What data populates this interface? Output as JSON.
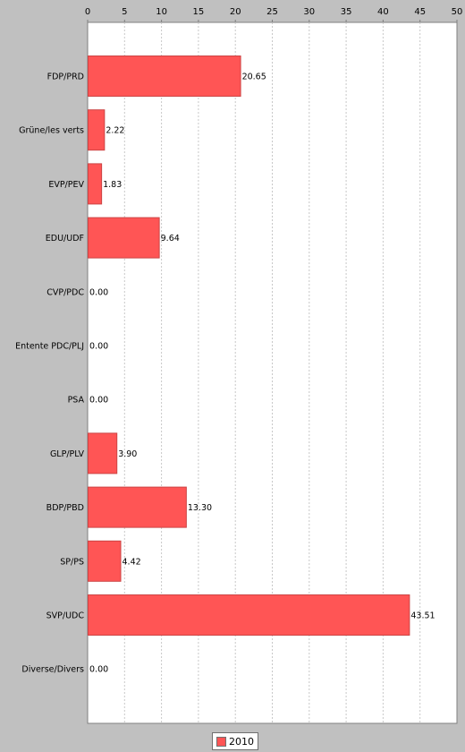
{
  "chart_data": {
    "type": "bar",
    "orientation": "horizontal",
    "categories": [
      "FDP/PRD",
      "Grüne/les verts",
      "EVP/PEV",
      "EDU/UDF",
      "CVP/PDC",
      "Entente PDC/PLJ",
      "PSA",
      "GLP/PLV",
      "BDP/PBD",
      "SP/PS",
      "SVP/UDC",
      "Diverse/Divers"
    ],
    "series": [
      {
        "name": "2010",
        "values": [
          20.65,
          2.22,
          1.83,
          9.64,
          0.0,
          0.0,
          0.0,
          3.9,
          13.3,
          4.42,
          43.51,
          0.0
        ],
        "value_labels": [
          "20.65",
          "2.22",
          "1.83",
          "9.64",
          "0.00",
          "0.00",
          "0.00",
          "3.90",
          "13.30",
          "4.42",
          "43.51",
          "0.00"
        ]
      }
    ],
    "xlim": [
      0,
      50
    ],
    "xticks": [
      "0",
      "5",
      "10",
      "15",
      "20",
      "25",
      "30",
      "35",
      "40",
      "45",
      "50"
    ],
    "axis_position": "top",
    "grid": true,
    "legend_position": "bottom-center",
    "colors": {
      "bar": "#ff5555",
      "bar_edge": "#cc4444",
      "plot_bg": "#ffffff",
      "grid": "#c8c8c8",
      "page_bg": "#c0c0c0"
    }
  }
}
